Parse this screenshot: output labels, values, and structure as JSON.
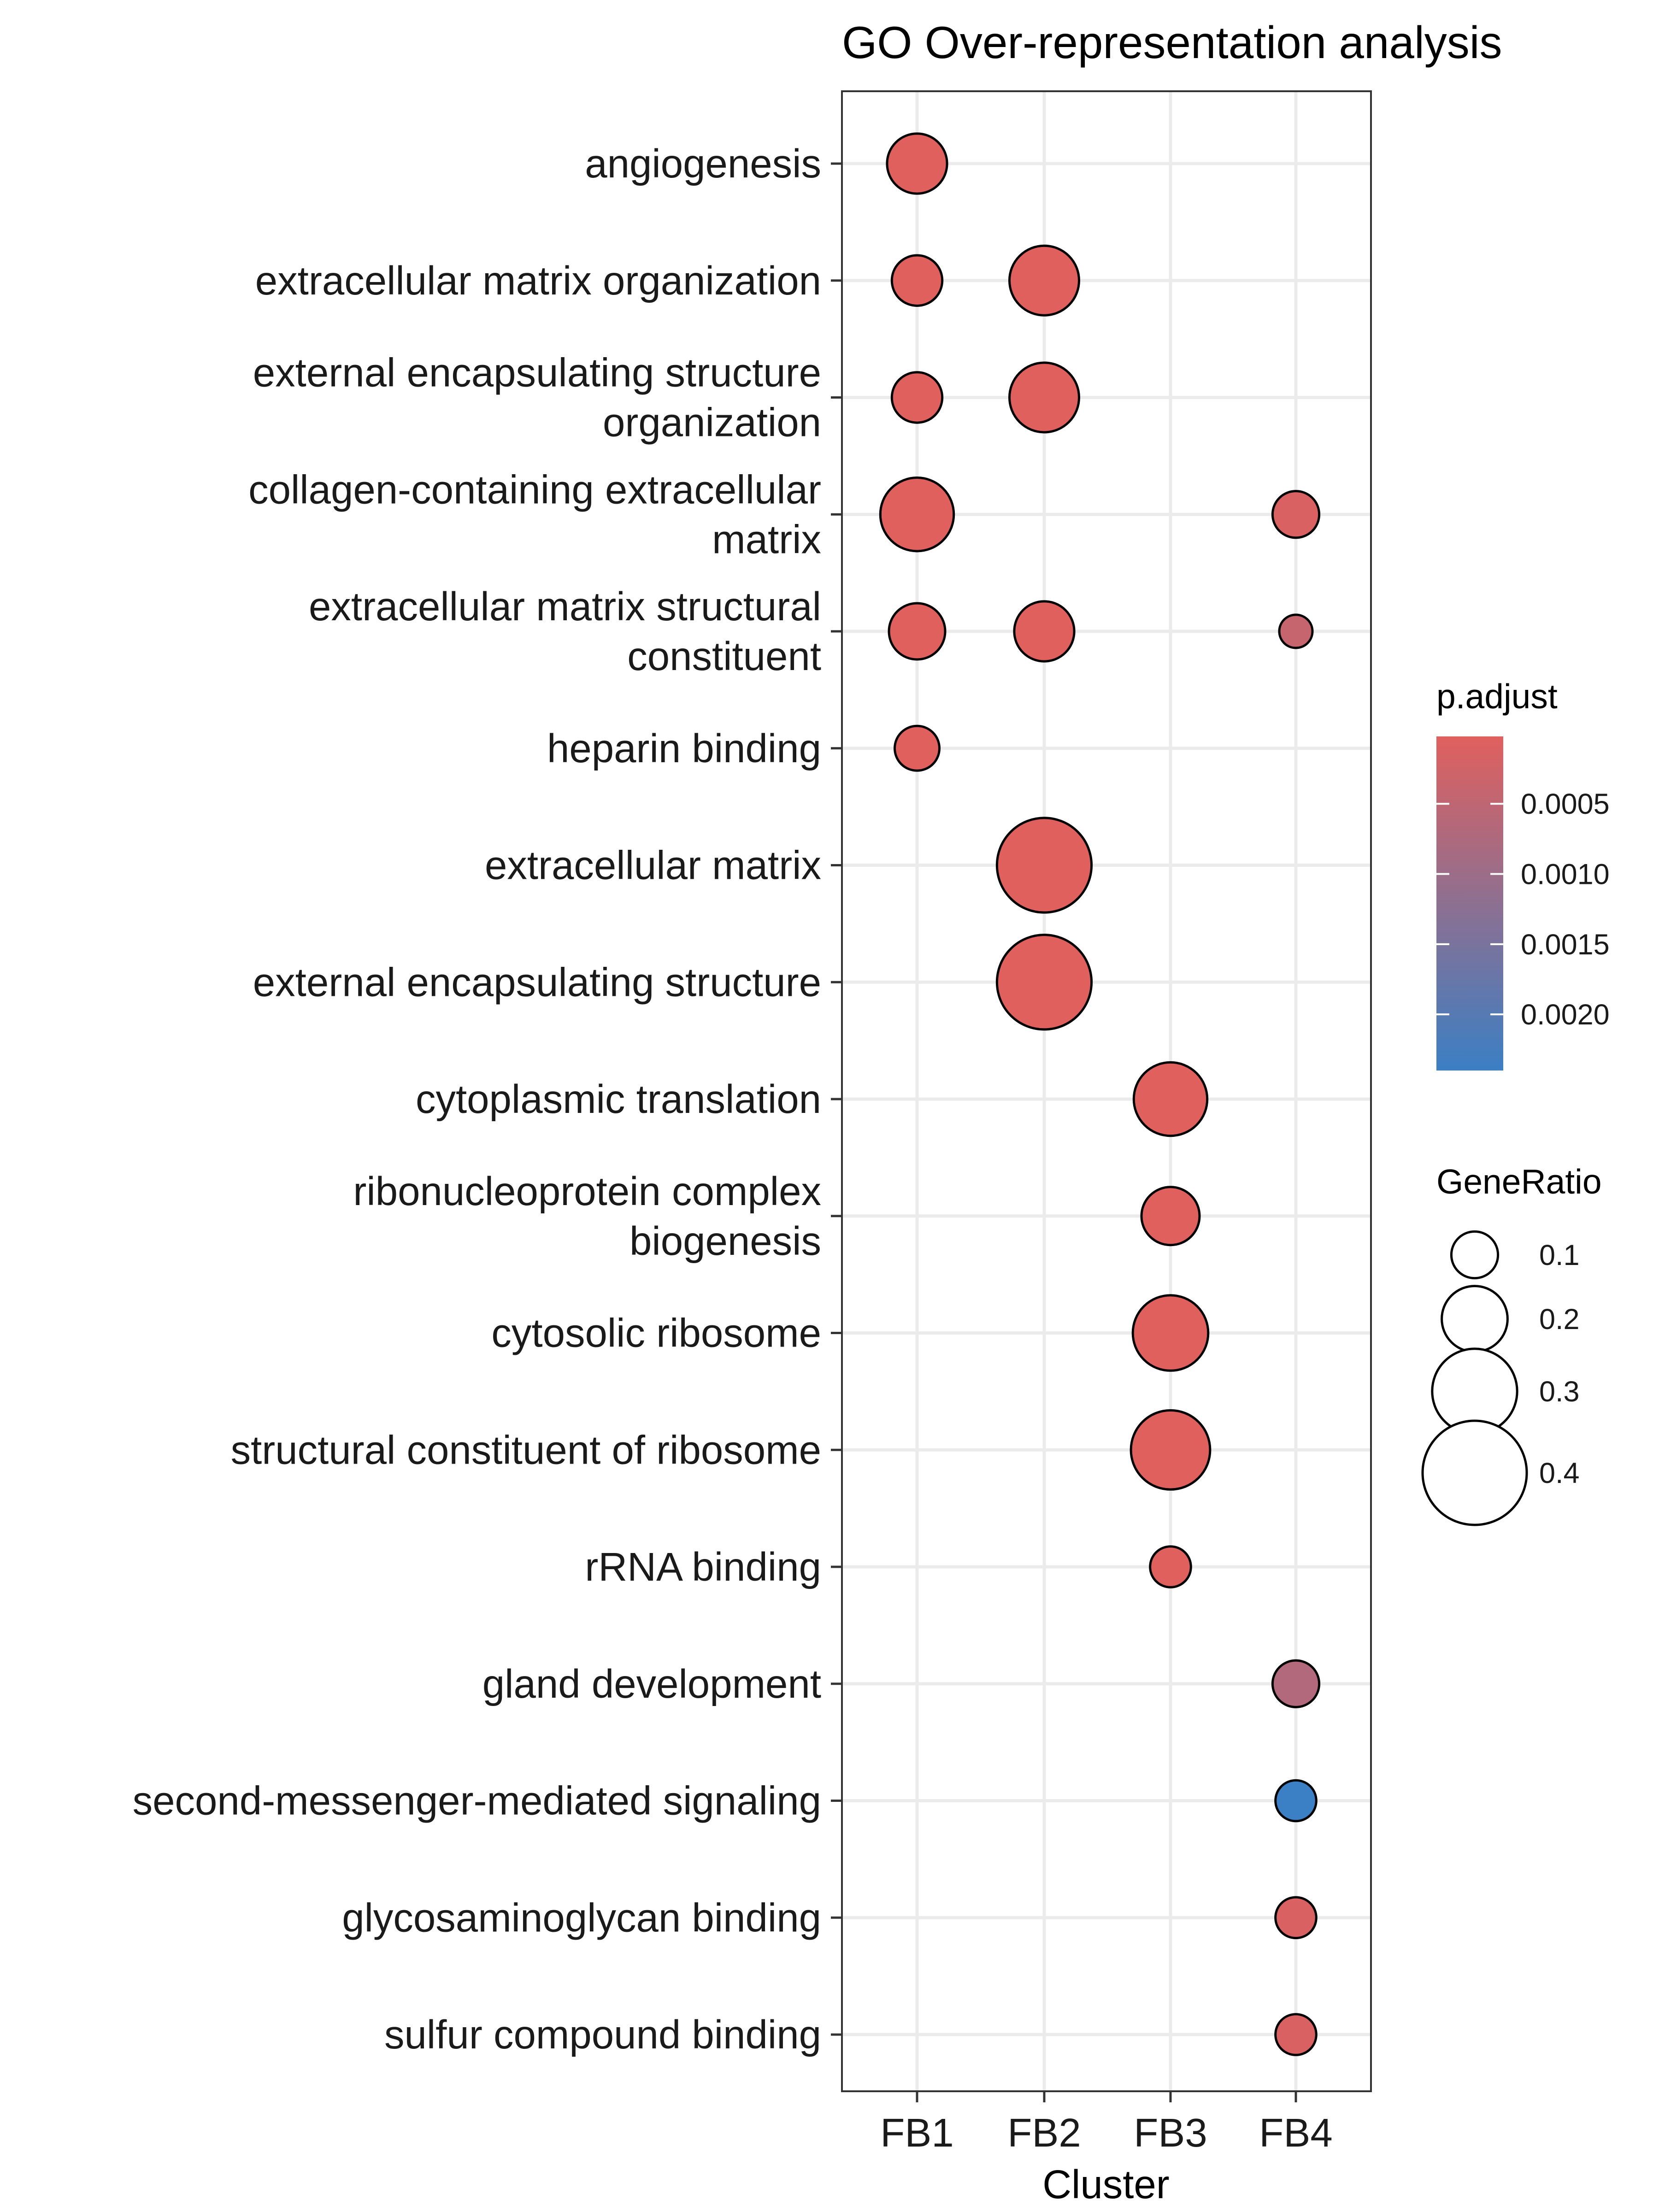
{
  "chart_data": {
    "type": "scatter",
    "title": "GO Over-representation analysis",
    "xlabel": "Cluster",
    "ylabel": "",
    "categories": [
      "FB1",
      "FB2",
      "FB3",
      "FB4"
    ],
    "terms": [
      {
        "lines": [
          "angiogenesis"
        ]
      },
      {
        "lines": [
          "extracellular matrix organization"
        ]
      },
      {
        "lines": [
          "external encapsulating structure",
          "organization"
        ]
      },
      {
        "lines": [
          "collagen-containing extracellular",
          "matrix"
        ]
      },
      {
        "lines": [
          "extracellular matrix structural",
          "constituent"
        ]
      },
      {
        "lines": [
          "heparin binding"
        ]
      },
      {
        "lines": [
          "extracellular matrix"
        ]
      },
      {
        "lines": [
          "external encapsulating structure"
        ]
      },
      {
        "lines": [
          "cytoplasmic translation"
        ]
      },
      {
        "lines": [
          "ribonucleoprotein complex",
          "biogenesis"
        ]
      },
      {
        "lines": [
          "cytosolic ribosome"
        ]
      },
      {
        "lines": [
          "structural constituent of ribosome"
        ]
      },
      {
        "lines": [
          "rRNA binding"
        ]
      },
      {
        "lines": [
          "gland development"
        ]
      },
      {
        "lines": [
          "second-messenger-mediated signaling"
        ]
      },
      {
        "lines": [
          "glycosaminoglycan binding"
        ]
      },
      {
        "lines": [
          "sulfur compound binding"
        ]
      }
    ],
    "points": [
      {
        "cluster": "FB1",
        "term": "angiogenesis",
        "gene_ratio": 0.17,
        "p_adjust": 2e-05
      },
      {
        "cluster": "FB1",
        "term": "extracellular matrix organization",
        "gene_ratio": 0.12,
        "p_adjust": 2e-05
      },
      {
        "cluster": "FB1",
        "term": "external encapsulating structure organization",
        "gene_ratio": 0.12,
        "p_adjust": 2e-05
      },
      {
        "cluster": "FB1",
        "term": "collagen-containing extracellular matrix",
        "gene_ratio": 0.24,
        "p_adjust": 2e-05
      },
      {
        "cluster": "FB1",
        "term": "extracellular matrix structural constituent",
        "gene_ratio": 0.15,
        "p_adjust": 2e-05
      },
      {
        "cluster": "FB1",
        "term": "heparin binding",
        "gene_ratio": 0.09,
        "p_adjust": 2e-05
      },
      {
        "cluster": "FB2",
        "term": "extracellular matrix organization",
        "gene_ratio": 0.22,
        "p_adjust": 2e-05
      },
      {
        "cluster": "FB2",
        "term": "external encapsulating structure organization",
        "gene_ratio": 0.22,
        "p_adjust": 2e-05
      },
      {
        "cluster": "FB2",
        "term": "extracellular matrix structural constituent",
        "gene_ratio": 0.17,
        "p_adjust": 2e-05
      },
      {
        "cluster": "FB2",
        "term": "extracellular matrix",
        "gene_ratio": 0.35,
        "p_adjust": 2e-05
      },
      {
        "cluster": "FB2",
        "term": "external encapsulating structure",
        "gene_ratio": 0.35,
        "p_adjust": 2e-05
      },
      {
        "cluster": "FB3",
        "term": "cytoplasmic translation",
        "gene_ratio": 0.24,
        "p_adjust": 2e-05
      },
      {
        "cluster": "FB3",
        "term": "ribonucleoprotein complex biogenesis",
        "gene_ratio": 0.16,
        "p_adjust": 2e-05
      },
      {
        "cluster": "FB3",
        "term": "cytosolic ribosome",
        "gene_ratio": 0.25,
        "p_adjust": 2e-05
      },
      {
        "cluster": "FB3",
        "term": "structural constituent of ribosome",
        "gene_ratio": 0.27,
        "p_adjust": 2e-05
      },
      {
        "cluster": "FB3",
        "term": "rRNA binding",
        "gene_ratio": 0.07,
        "p_adjust": 2e-05
      },
      {
        "cluster": "FB4",
        "term": "collagen-containing extracellular matrix",
        "gene_ratio": 0.1,
        "p_adjust": 0.0001
      },
      {
        "cluster": "FB4",
        "term": "extracellular matrix structural constituent",
        "gene_ratio": 0.03,
        "p_adjust": 0.0004
      },
      {
        "cluster": "FB4",
        "term": "gland development",
        "gene_ratio": 0.1,
        "p_adjust": 0.0007
      },
      {
        "cluster": "FB4",
        "term": "second-messenger-mediated signaling",
        "gene_ratio": 0.07,
        "p_adjust": 0.0024
      },
      {
        "cluster": "FB4",
        "term": "glycosaminoglycan binding",
        "gene_ratio": 0.07,
        "p_adjust": 0.0001
      },
      {
        "cluster": "FB4",
        "term": "sulfur compound binding",
        "gene_ratio": 0.07,
        "p_adjust": 0.0001
      }
    ],
    "grid": true,
    "legend": {
      "position": "right",
      "color": {
        "title": "p.adjust",
        "ticks": [
          0.0005,
          0.001,
          0.0015,
          0.002
        ],
        "tick_labels": [
          "0.0005",
          "0.0010",
          "0.0015",
          "0.0020"
        ],
        "range": [
          2e-05,
          0.0024
        ],
        "low_color": "#e0605e",
        "high_color": "#3b7fc4"
      },
      "size": {
        "title": "GeneRatio",
        "values": [
          0.1,
          0.2,
          0.3,
          0.4
        ],
        "labels": [
          "0.1",
          "0.2",
          "0.3",
          "0.4"
        ]
      }
    }
  }
}
